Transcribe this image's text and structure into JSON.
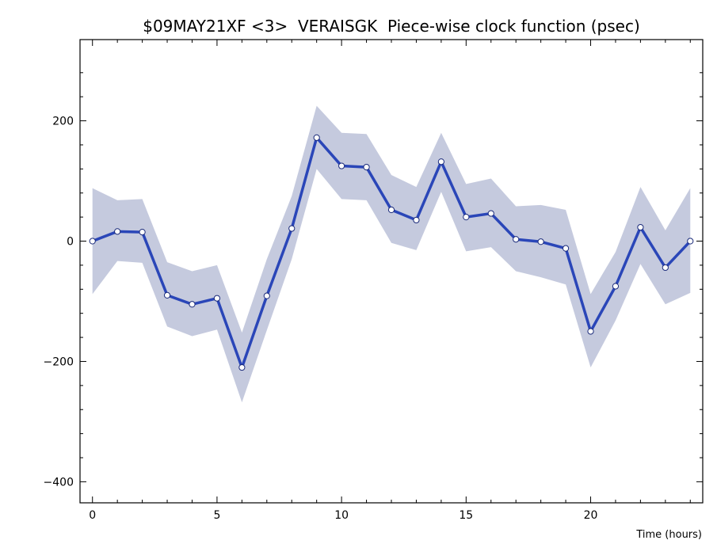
{
  "chart_data": {
    "type": "line",
    "title": "$09MAY21XF <3>  VERAISGK  Piece-wise clock function (psec)",
    "xlabel": "Time (hours)",
    "ylabel": "",
    "xlim": [
      -0.5,
      24.5
    ],
    "ylim": [
      -435,
      335
    ],
    "x_ticks": [
      0,
      5,
      10,
      15,
      20
    ],
    "y_ticks": [
      -400,
      -200,
      0,
      200
    ],
    "grid": false,
    "x": [
      0,
      1,
      2,
      3,
      4,
      5,
      6,
      7,
      8,
      9,
      10,
      11,
      12,
      13,
      14,
      15,
      16,
      17,
      18,
      19,
      20,
      21,
      22,
      23,
      24
    ],
    "series": [
      {
        "values": [
          0,
          16,
          15,
          -90,
          -105,
          -95,
          -210,
          -91,
          21,
          172,
          125,
          123,
          52,
          35,
          132,
          40,
          46,
          3,
          -1,
          -12,
          -150,
          -75,
          23,
          -44,
          0
        ],
        "lower": [
          -88,
          -33,
          -36,
          -142,
          -158,
          -147,
          -268,
          -148,
          -30,
          120,
          70,
          68,
          -3,
          -15,
          82,
          -17,
          -10,
          -50,
          -60,
          -72,
          -210,
          -132,
          -38,
          -105,
          -86
        ],
        "upper": [
          88,
          68,
          70,
          -35,
          -50,
          -40,
          -152,
          -30,
          75,
          225,
          180,
          178,
          110,
          90,
          180,
          95,
          104,
          58,
          60,
          52,
          -88,
          -18,
          90,
          18,
          88
        ],
        "color": "#2a46b8",
        "band_color": "#c5cade"
      }
    ]
  }
}
